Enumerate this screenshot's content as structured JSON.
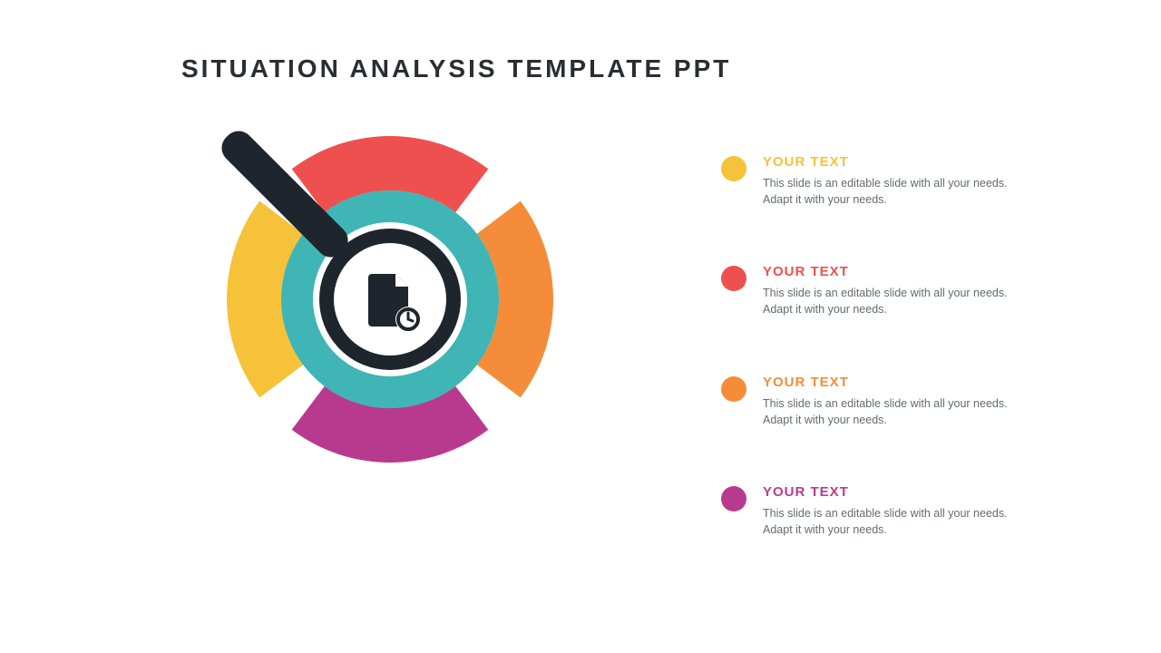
{
  "title": "SITUATION ANALYSIS TEMPLATE PPT",
  "title_color": "#2a2e33",
  "title_fontsize": 28,
  "background_color": "#ffffff",
  "graphic": {
    "type": "infographic",
    "outer_segments": [
      {
        "position": "top",
        "color": "#ee5050"
      },
      {
        "position": "right",
        "color": "#f58c3a"
      },
      {
        "position": "bottom",
        "color": "#b83a8e"
      },
      {
        "position": "left",
        "color": "#f5c23a"
      }
    ],
    "outer_radius": 180,
    "outer_inner_radius": 120,
    "segment_gap_deg": 16,
    "inner_ring_color": "#3fb5b5",
    "inner_ring_outer": 120,
    "inner_ring_inner": 85,
    "magnifier": {
      "frame_color": "#1e252c",
      "lens_fill": "#ffffff",
      "lens_radius": 70,
      "frame_width": 16,
      "handle_length": 180,
      "handle_width": 36
    },
    "center_icon": {
      "name": "document-clock-icon",
      "color": "#1e252c"
    }
  },
  "items": [
    {
      "heading": "YOUR TEXT",
      "body": "This slide is an editable slide with all your needs. Adapt it with your needs.",
      "dot_color": "#f5c23a",
      "heading_color": "#f5c23a"
    },
    {
      "heading": "YOUR TEXT",
      "body": "This slide is an editable slide with all your needs. Adapt it with your needs.",
      "dot_color": "#ee5050",
      "heading_color": "#ee5050"
    },
    {
      "heading": "YOUR TEXT",
      "body": "This slide is an editable slide with all your needs. Adapt it with your needs.",
      "dot_color": "#f58c3a",
      "heading_color": "#f58c3a"
    },
    {
      "heading": "YOUR TEXT",
      "body": "This slide is an editable slide with all your needs. Adapt it with your needs.",
      "dot_color": "#b83a8e",
      "heading_color": "#b83a8e"
    }
  ],
  "body_text_color": "#666a6f",
  "heading_fontsize": 15,
  "body_fontsize": 12.5
}
